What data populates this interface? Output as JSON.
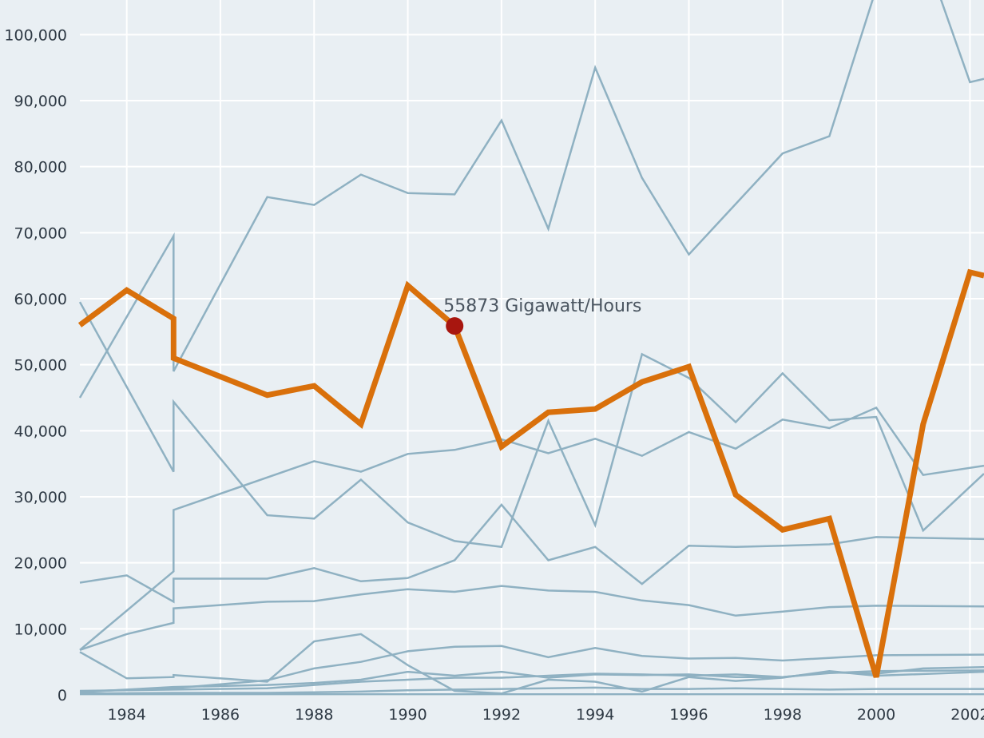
{
  "chart_data": {
    "type": "line",
    "xlim": [
      1983,
      2002.3
    ],
    "ylim": [
      0,
      105000
    ],
    "x_ticks": [
      1984,
      1986,
      1988,
      1990,
      1992,
      1994,
      1996,
      1998,
      2000,
      2002
    ],
    "x_tick_labels": [
      "1984",
      "1986",
      "1988",
      "1990",
      "1992",
      "1994",
      "1996",
      "1998",
      "2000",
      "2002"
    ],
    "y_ticks": [
      0,
      10000,
      20000,
      30000,
      40000,
      50000,
      60000,
      70000,
      80000,
      90000,
      100000
    ],
    "y_tick_labels": [
      "0",
      "10,000",
      "20,000",
      "30,000",
      "40,000",
      "50,000",
      "60,000",
      "70,000",
      "80,000",
      "90,000",
      "100,000"
    ],
    "grid": true,
    "colors": {
      "background": "#e9eff3",
      "grid": "#ffffff",
      "background_series": "#8fb1c2",
      "highlight_series": "#d9700b",
      "highlight_point": "#a8160f"
    },
    "highlight": {
      "x": [
        1983,
        1984,
        1985,
        1985,
        1987,
        1988,
        1989,
        1990,
        1991,
        1992,
        1993,
        1994,
        1995,
        1996,
        1997,
        1998,
        1999,
        2000,
        2001,
        2002,
        2002.3
      ],
      "y": [
        56000,
        61300,
        57000,
        51000,
        45400,
        46800,
        41000,
        62000,
        55873,
        37600,
        42800,
        43300,
        47400,
        49700,
        30300,
        25000,
        26700,
        2700,
        41000,
        64000,
        63500
      ]
    },
    "selected_point": {
      "x": 1991,
      "y": 55873,
      "label": "55873 Gigawatt/Hours"
    },
    "background_series": [
      {
        "x": [
          1983,
          1985,
          1985,
          1987,
          1988,
          1989,
          1990,
          1991,
          1992,
          1993,
          1994,
          1995,
          1996,
          1998,
          1999,
          2000,
          2001,
          2002,
          2002.3
        ],
        "y": [
          45000,
          69500,
          49000,
          75400,
          74200,
          78800,
          76000,
          75800,
          87000,
          70600,
          95000,
          78300,
          66700,
          82000,
          84600,
          107000,
          113000,
          92800,
          93300
        ]
      },
      {
        "x": [
          1983,
          1985,
          1985,
          1987,
          1988,
          1989,
          1990,
          1991,
          1992,
          1993,
          1994,
          1995,
          1996,
          1997,
          1998,
          1999,
          2000,
          2001,
          2002.3
        ],
        "y": [
          59500,
          33800,
          44400,
          27200,
          26700,
          32600,
          26100,
          23300,
          22400,
          41500,
          25700,
          51600,
          48000,
          41300,
          48700,
          41600,
          42100,
          24900,
          33500
        ]
      },
      {
        "x": [
          1983,
          1985,
          1985,
          1988,
          1989,
          1990,
          1991,
          1992,
          1993,
          1994,
          1995,
          1996,
          1997,
          1998,
          1999,
          2000,
          2001,
          2002.3
        ],
        "y": [
          6800,
          18700,
          28000,
          35400,
          33800,
          36500,
          37100,
          38700,
          36600,
          38800,
          36200,
          39800,
          37300,
          41700,
          40400,
          43500,
          33300,
          34700
        ]
      },
      {
        "x": [
          1983,
          1984,
          1985,
          1985,
          1987,
          1988,
          1989,
          1990,
          1991,
          1992,
          1993,
          1994,
          1995,
          1996,
          1997,
          1998,
          1999,
          2000,
          2002.3
        ],
        "y": [
          17000,
          18100,
          14100,
          17600,
          17600,
          19200,
          17200,
          17700,
          20400,
          28800,
          20400,
          22400,
          16800,
          22600,
          22400,
          22600,
          22800,
          23900,
          23600
        ]
      },
      {
        "x": [
          1983,
          1984,
          1985,
          1985,
          1987,
          1988,
          1989,
          1990,
          1991,
          1992,
          1993,
          1994,
          1995,
          1996,
          1997,
          1998,
          1999,
          2000,
          2002.3
        ],
        "y": [
          6800,
          9200,
          10900,
          13100,
          14100,
          14200,
          15200,
          16000,
          15600,
          16500,
          15800,
          15600,
          14300,
          13600,
          12000,
          12600,
          13300,
          13500,
          13400
        ]
      },
      {
        "x": [
          1983,
          1984,
          1985,
          1985,
          1987,
          1988,
          1989,
          1990,
          1991,
          1992,
          1993,
          1994,
          1995,
          1996,
          1997,
          1998,
          1999,
          2000,
          2002.3
        ],
        "y": [
          6500,
          2500,
          2700,
          3000,
          2000,
          8100,
          9200,
          4500,
          600,
          200,
          2300,
          2000,
          500,
          2700,
          2100,
          2600,
          3600,
          2900,
          3500
        ]
      },
      {
        "x": [
          1983,
          1985,
          1987,
          1988,
          1989,
          1990,
          1991,
          1992,
          1993,
          1994,
          1995,
          1996,
          1997,
          1998,
          1999,
          2000,
          2002.3
        ],
        "y": [
          500,
          1000,
          2200,
          4000,
          5000,
          6600,
          7300,
          7400,
          5700,
          7100,
          5900,
          5500,
          5600,
          5200,
          5600,
          6000,
          6100
        ]
      },
      {
        "x": [
          1983,
          1985,
          1987,
          1988,
          1989,
          1990,
          1991,
          1992,
          1993,
          1994,
          1995,
          1996,
          1997,
          1998,
          1999,
          2000,
          2001,
          2002.3
        ],
        "y": [
          400,
          1200,
          1500,
          1800,
          2300,
          3500,
          2900,
          3500,
          2600,
          3100,
          3000,
          3100,
          2700,
          2700,
          3400,
          3200,
          4000,
          4200
        ]
      },
      {
        "x": [
          1983,
          1985,
          1987,
          1988,
          1989,
          1990,
          1991,
          1992,
          1993,
          1994,
          1995,
          1996,
          1997,
          1998,
          1999,
          2000,
          2002.3
        ],
        "y": [
          600,
          800,
          1000,
          1500,
          2000,
          2300,
          2600,
          2600,
          2900,
          3200,
          3100,
          2900,
          3100,
          2700,
          3300,
          3600,
          3700
        ]
      },
      {
        "x": [
          1983,
          1985,
          1987,
          1988,
          1989,
          1990,
          1991,
          1992,
          1993,
          1994,
          1995,
          1996,
          1997,
          1998,
          1999,
          2000,
          2002.3
        ],
        "y": [
          200,
          300,
          300,
          400,
          500,
          700,
          800,
          900,
          1000,
          1100,
          900,
          900,
          1000,
          900,
          800,
          900,
          900
        ]
      },
      {
        "x": [
          1983,
          1985,
          1987,
          1990,
          1994,
          1996,
          2000,
          2002.3
        ],
        "y": [
          100,
          100,
          100,
          100,
          100,
          100,
          100,
          100
        ]
      }
    ]
  }
}
